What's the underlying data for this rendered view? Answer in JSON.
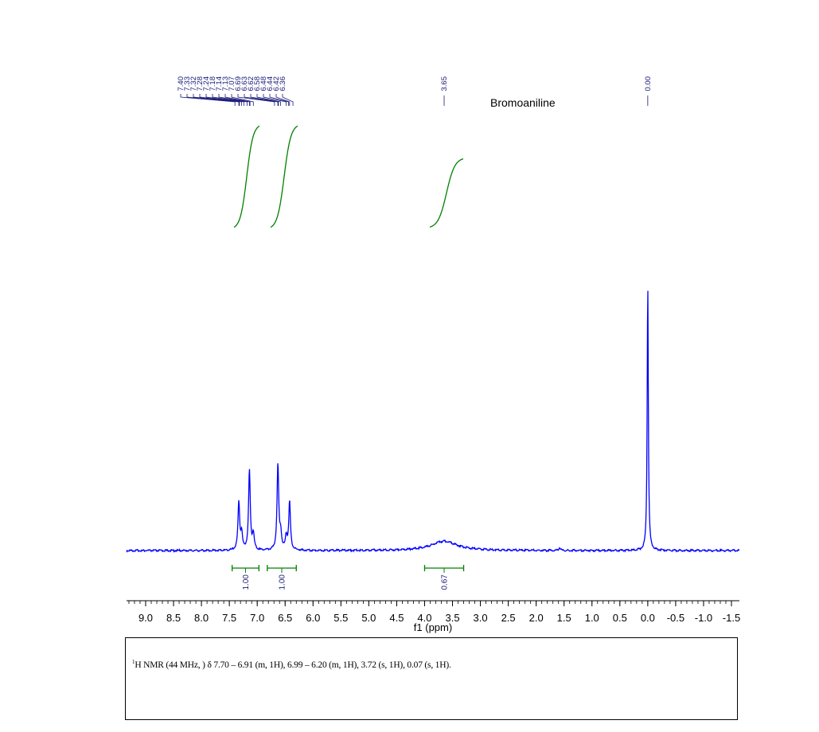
{
  "chart_data": {
    "type": "line",
    "title": "Bromoaniline",
    "xlabel": "f1 (ppm)",
    "x_reversed": true,
    "xlim": [
      9.35,
      -1.55
    ],
    "x_ticks": [
      9.0,
      8.5,
      8.0,
      7.5,
      7.0,
      6.5,
      6.0,
      5.5,
      5.0,
      4.5,
      4.0,
      3.5,
      3.0,
      2.5,
      2.0,
      1.5,
      1.0,
      0.5,
      0.0,
      -0.5,
      -1.0,
      -1.5
    ],
    "x_tick_labels": [
      "9.0",
      "8.5",
      "8.0",
      "7.5",
      "7.0",
      "6.5",
      "6.0",
      "5.5",
      "5.0",
      "4.5",
      "4.0",
      "3.5",
      "3.0",
      "2.5",
      "2.0",
      "1.5",
      "1.0",
      "0.5",
      "0.0",
      "-0.5",
      "-1.0",
      "-1.5"
    ],
    "peaks": [
      {
        "ppm": 7.33,
        "height": 0.18
      },
      {
        "ppm": 7.28,
        "height": 0.06
      },
      {
        "ppm": 7.14,
        "height": 0.3
      },
      {
        "ppm": 7.07,
        "height": 0.06
      },
      {
        "ppm": 6.63,
        "height": 0.32
      },
      {
        "ppm": 6.58,
        "height": 0.06
      },
      {
        "ppm": 6.48,
        "height": 0.05
      },
      {
        "ppm": 6.42,
        "height": 0.18
      },
      {
        "ppm": 3.65,
        "height": 0.035,
        "broad": true
      },
      {
        "ppm": 1.58,
        "height": 0.01
      },
      {
        "ppm": 0.0,
        "height": 1.0
      }
    ],
    "peak_labels_group_1": [
      "7.40",
      "7.33",
      "7.32",
      "7.28",
      "7.24",
      "7.18",
      "7.14",
      "7.13",
      "7.07",
      "6.69",
      "6.63",
      "6.62",
      "6.58",
      "6.48",
      "6.44",
      "6.42",
      "6.36"
    ],
    "peak_label_single_1": "3.65",
    "peak_label_single_2": "0.00",
    "integrals": [
      {
        "from": 7.45,
        "to": 6.97,
        "value": "1.00"
      },
      {
        "from": 6.82,
        "to": 6.3,
        "value": "1.00"
      },
      {
        "from": 4.0,
        "to": 3.3,
        "value": "0.67"
      }
    ],
    "colors": {
      "spectrum": "#0000ff",
      "integral": "#008000",
      "peak_label": "#1a1a7a",
      "axis": "#000000"
    }
  },
  "report": {
    "superscript": "1",
    "text": "H NMR (44 MHz, ) δ 7.70 – 6.91 (m, 1H), 6.99 – 6.20 (m, 1H), 3.72 (s, 1H), 0.07 (s, 1H)."
  }
}
